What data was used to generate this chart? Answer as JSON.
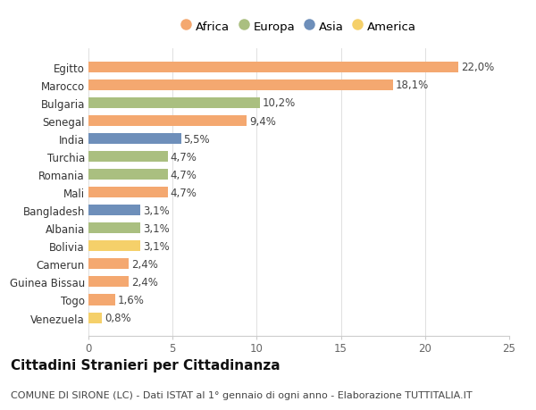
{
  "categories": [
    "Egitto",
    "Marocco",
    "Bulgaria",
    "Senegal",
    "India",
    "Turchia",
    "Romania",
    "Mali",
    "Bangladesh",
    "Albania",
    "Bolivia",
    "Camerun",
    "Guinea Bissau",
    "Togo",
    "Venezuela"
  ],
  "values": [
    22.0,
    18.1,
    10.2,
    9.4,
    5.5,
    4.7,
    4.7,
    4.7,
    3.1,
    3.1,
    3.1,
    2.4,
    2.4,
    1.6,
    0.8
  ],
  "labels": [
    "22,0%",
    "18,1%",
    "10,2%",
    "9,4%",
    "5,5%",
    "4,7%",
    "4,7%",
    "4,7%",
    "3,1%",
    "3,1%",
    "3,1%",
    "2,4%",
    "2,4%",
    "1,6%",
    "0,8%"
  ],
  "continents": [
    "Africa",
    "Africa",
    "Europa",
    "Africa",
    "Asia",
    "Europa",
    "Europa",
    "Africa",
    "Asia",
    "Europa",
    "America",
    "Africa",
    "Africa",
    "Africa",
    "America"
  ],
  "continent_colors": {
    "Africa": "#F4A870",
    "Europa": "#AABF80",
    "Asia": "#6E8FBA",
    "America": "#F5D06A"
  },
  "legend_order": [
    "Africa",
    "Europa",
    "Asia",
    "America"
  ],
  "xlim": [
    0,
    25
  ],
  "xticks": [
    0,
    5,
    10,
    15,
    20,
    25
  ],
  "title": "Cittadini Stranieri per Cittadinanza",
  "subtitle": "COMUNE DI SIRONE (LC) - Dati ISTAT al 1° gennaio di ogni anno - Elaborazione TUTTITALIA.IT",
  "bg_color": "#ffffff",
  "bar_height": 0.6,
  "tick_fontsize": 8.5,
  "label_fontsize": 8.5,
  "legend_fontsize": 9.5,
  "title_fontsize": 11,
  "subtitle_fontsize": 8
}
